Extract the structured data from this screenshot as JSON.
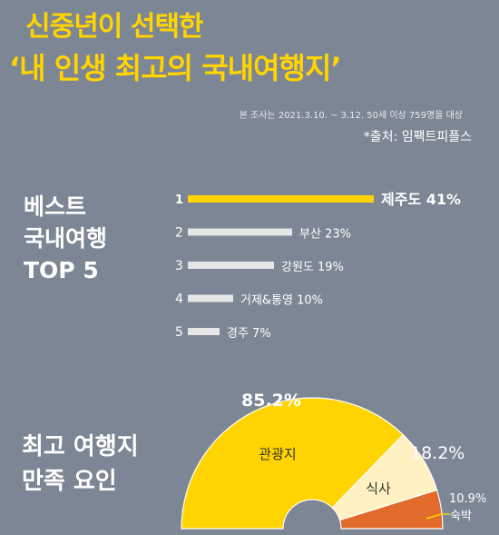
{
  "title": {
    "line1": "신중년이 선택한",
    "line2": "‘내 인생 최고의 국내여행지’"
  },
  "survey_note": "본 조사는 2021.3.10. ~ 3.12. 50세 이상 759명을 대상",
  "source": "*출처: 임팩트피플스",
  "colors": {
    "background": "#7c8694",
    "accent": "#ffd400",
    "bar": "#e6e6e6",
    "meal": "#fff1c2",
    "stay": "#e06b2b"
  },
  "chart_data": [
    {
      "type": "bar",
      "orientation": "horizontal",
      "title_lines": [
        "베스트",
        "국내여행",
        "TOP 5"
      ],
      "ranks": [
        "1",
        "2",
        "3",
        "4",
        "5"
      ],
      "categories": [
        "제주도",
        "부산",
        "강원도",
        "거제&통영",
        "경주"
      ],
      "values": [
        41,
        23,
        19,
        10,
        7
      ],
      "labels": [
        "제주도 41%",
        "부산 23%",
        "강원도 19%",
        "거제&통영 10%",
        "경주 7%"
      ],
      "unit": "%"
    },
    {
      "type": "pie",
      "style": "half-donut",
      "title_lines": [
        "최고 여행지",
        "만족 요인"
      ],
      "categories": [
        "관광지",
        "식사",
        "숙박"
      ],
      "values": [
        85.2,
        18.2,
        10.9
      ],
      "value_labels": [
        "85.2%",
        "18.2%",
        "10.9%"
      ],
      "unit": "%"
    }
  ]
}
